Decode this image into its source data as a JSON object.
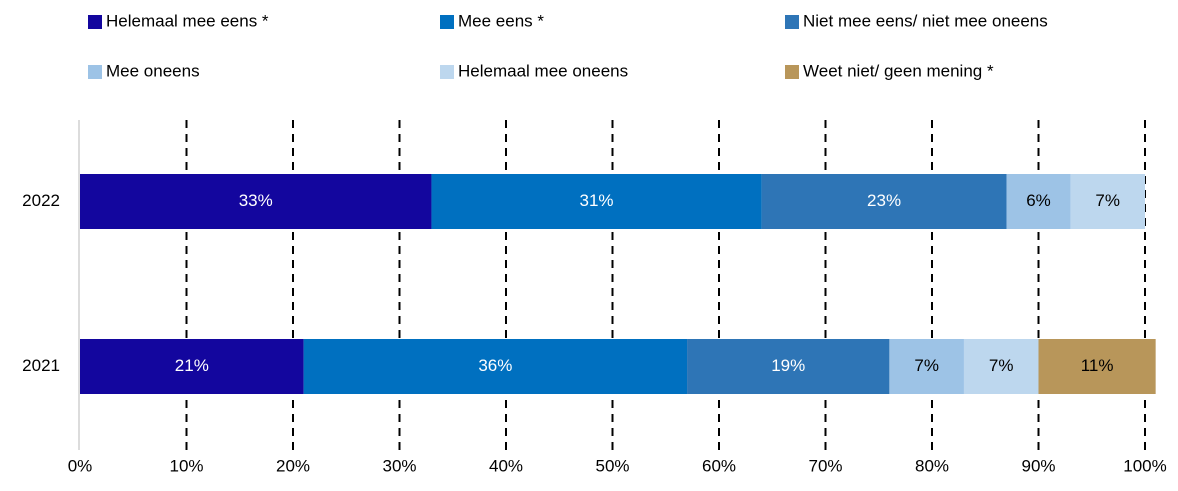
{
  "chart_data": {
    "type": "stacked-barh",
    "categories": [
      "2022",
      "2021"
    ],
    "series": [
      {
        "name": "Helemaal mee eens *",
        "color": "#13069e",
        "values": [
          33,
          21
        ],
        "value_labels": [
          "33%",
          "21%"
        ]
      },
      {
        "name": "Mee eens *",
        "color": "#0070c0",
        "values": [
          31,
          36
        ],
        "value_labels": [
          "31%",
          "36%"
        ]
      },
      {
        "name": "Niet mee eens/ niet mee oneens",
        "color": "#2e75b6",
        "values": [
          23,
          19
        ],
        "value_labels": [
          "23%",
          "19%"
        ]
      },
      {
        "name": "Mee oneens",
        "color": "#9dc3e6",
        "values": [
          6,
          7
        ],
        "value_labels": [
          "6%",
          "7%"
        ]
      },
      {
        "name": "Helemaal mee oneens",
        "color": "#bdd7ee",
        "values": [
          7,
          7
        ],
        "value_labels": [
          "7%",
          "7%"
        ]
      },
      {
        "name": "Weet niet/ geen mening *",
        "color": "#b8965a",
        "values": [
          null,
          11
        ],
        "value_labels": [
          null,
          "11%"
        ]
      }
    ],
    "xlim": [
      0,
      100
    ],
    "xticks": [
      {
        "value": 0,
        "label": "0%"
      },
      {
        "value": 10,
        "label": "10%"
      },
      {
        "value": 20,
        "label": "20%"
      },
      {
        "value": 30,
        "label": "30%"
      },
      {
        "value": 40,
        "label": "40%"
      },
      {
        "value": 50,
        "label": "50%"
      },
      {
        "value": 60,
        "label": "60%"
      },
      {
        "value": 70,
        "label": "70%"
      },
      {
        "value": 80,
        "label": "80%"
      },
      {
        "value": 90,
        "label": "90%"
      },
      {
        "value": 100,
        "label": "100%"
      }
    ],
    "grid": true,
    "legend": "top"
  }
}
